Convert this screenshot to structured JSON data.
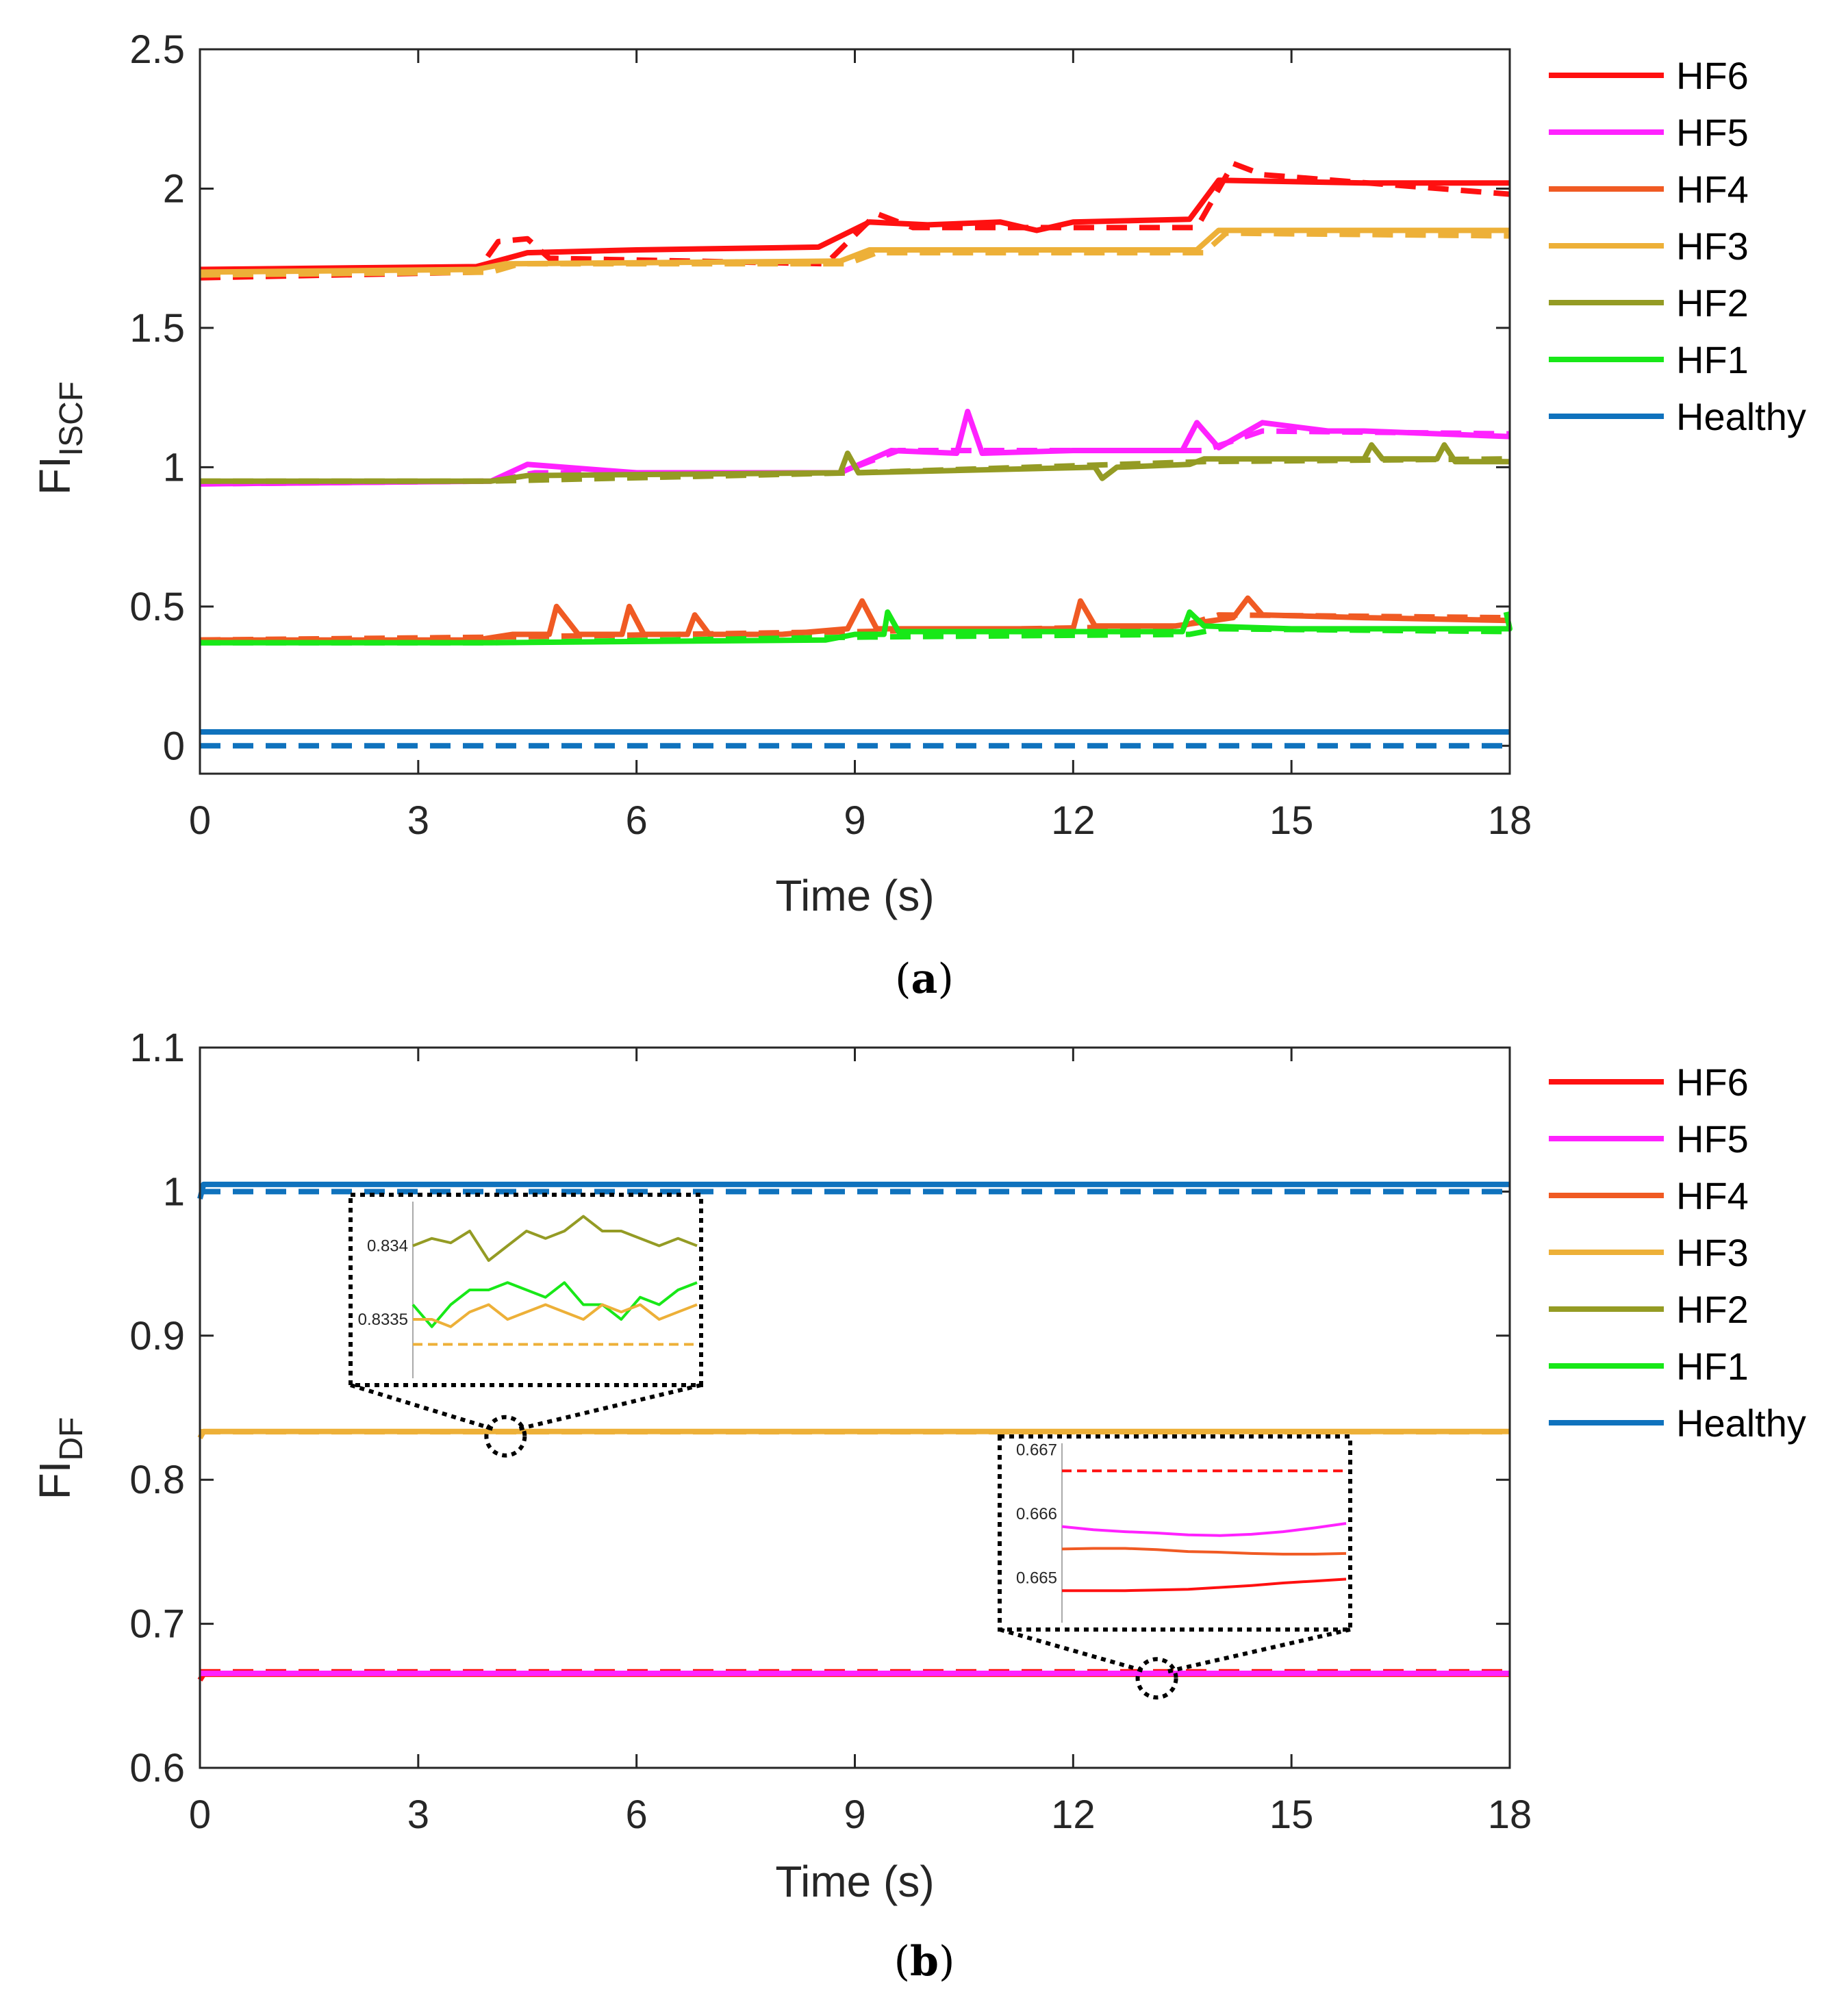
{
  "chart_data": [
    {
      "panel": "a",
      "caption_letter": "a",
      "type": "line",
      "ylabel_main": "FI",
      "ylabel_sub": "ISCF",
      "xlabel": "Time (s)",
      "xlim": [
        0,
        18
      ],
      "ylim": [
        -0.1,
        2.5
      ],
      "xticks": [
        0,
        3,
        6,
        9,
        12,
        15,
        18
      ],
      "yticks": [
        0,
        0.5,
        1,
        1.5,
        2,
        2.5
      ],
      "ytick_labels": [
        "0",
        "0.5",
        "1",
        "1.5",
        "2",
        "2.5"
      ],
      "legend": [
        "HF6",
        "HF5",
        "HF4",
        "HF3",
        "HF2",
        "HF1",
        "Healthy"
      ],
      "series": [
        {
          "name": "HF6",
          "color": "#ff1010",
          "style": "solid",
          "pts": [
            [
              0,
              1.71
            ],
            [
              3.8,
              1.72
            ],
            [
              4.5,
              1.77
            ],
            [
              6,
              1.78
            ],
            [
              8.5,
              1.79
            ],
            [
              9.2,
              1.88
            ],
            [
              10,
              1.87
            ],
            [
              11,
              1.88
            ],
            [
              11.5,
              1.85
            ],
            [
              12,
              1.88
            ],
            [
              13.6,
              1.89
            ],
            [
              14,
              2.03
            ],
            [
              16,
              2.02
            ],
            [
              18,
              2.02
            ]
          ]
        },
        {
          "name": "HF6",
          "color": "#ff1010",
          "style": "dashed",
          "pts": [
            [
              0,
              1.68
            ],
            [
              3.8,
              1.7
            ],
            [
              4.1,
              1.81
            ],
            [
              4.5,
              1.82
            ],
            [
              4.8,
              1.75
            ],
            [
              8.6,
              1.73
            ],
            [
              9.3,
              1.91
            ],
            [
              9.8,
              1.86
            ],
            [
              13.7,
              1.86
            ],
            [
              14.2,
              2.09
            ],
            [
              14.6,
              2.05
            ],
            [
              18,
              1.98
            ]
          ]
        },
        {
          "name": "HF5",
          "color": "#ff22ff",
          "style": "solid",
          "pts": [
            [
              0,
              0.94
            ],
            [
              4,
              0.95
            ],
            [
              4.5,
              1.01
            ],
            [
              6,
              0.98
            ],
            [
              8.8,
              0.98
            ],
            [
              9.5,
              1.06
            ],
            [
              10.4,
              1.05
            ],
            [
              10.55,
              1.2
            ],
            [
              10.75,
              1.05
            ],
            [
              12,
              1.06
            ],
            [
              13.5,
              1.06
            ],
            [
              13.7,
              1.16
            ],
            [
              14,
              1.07
            ],
            [
              14.6,
              1.16
            ],
            [
              15.5,
              1.13
            ],
            [
              16,
              1.13
            ],
            [
              18,
              1.11
            ]
          ]
        },
        {
          "name": "HF5",
          "color": "#ff22ff",
          "style": "dashed",
          "pts": [
            [
              0,
              0.94
            ],
            [
              4,
              0.95
            ],
            [
              4.6,
              0.98
            ],
            [
              8.8,
              0.98
            ],
            [
              9.6,
              1.06
            ],
            [
              13.8,
              1.06
            ],
            [
              14.6,
              1.13
            ],
            [
              18,
              1.12
            ]
          ]
        },
        {
          "name": "HF4",
          "color": "#f05a23",
          "style": "solid",
          "pts": [
            [
              0,
              0.38
            ],
            [
              3.8,
              0.38
            ],
            [
              4.3,
              0.4
            ],
            [
              4.8,
              0.4
            ],
            [
              4.9,
              0.5
            ],
            [
              5.2,
              0.4
            ],
            [
              5.8,
              0.4
            ],
            [
              5.9,
              0.5
            ],
            [
              6.1,
              0.4
            ],
            [
              6.7,
              0.4
            ],
            [
              6.8,
              0.47
            ],
            [
              7,
              0.4
            ],
            [
              8,
              0.4
            ],
            [
              8.9,
              0.42
            ],
            [
              9.1,
              0.52
            ],
            [
              9.3,
              0.42
            ],
            [
              12,
              0.42
            ],
            [
              12.1,
              0.52
            ],
            [
              12.3,
              0.43
            ],
            [
              13.4,
              0.43
            ],
            [
              14.2,
              0.46
            ],
            [
              14.4,
              0.53
            ],
            [
              14.6,
              0.47
            ],
            [
              16,
              0.46
            ],
            [
              18,
              0.45
            ]
          ]
        },
        {
          "name": "HF4",
          "color": "#f05a23",
          "style": "dashed",
          "pts": [
            [
              0,
              0.38
            ],
            [
              4,
              0.39
            ],
            [
              9,
              0.41
            ],
            [
              13.5,
              0.43
            ],
            [
              14,
              0.47
            ],
            [
              18,
              0.46
            ]
          ]
        },
        {
          "name": "HF3",
          "color": "#edb038",
          "style": "solid",
          "pts": [
            [
              0,
              1.7
            ],
            [
              3.8,
              1.71
            ],
            [
              4.2,
              1.73
            ],
            [
              8.8,
              1.74
            ],
            [
              9.2,
              1.78
            ],
            [
              13.7,
              1.78
            ],
            [
              14,
              1.85
            ],
            [
              18,
              1.85
            ]
          ]
        },
        {
          "name": "HF3",
          "color": "#edb038",
          "style": "dashed",
          "pts": [
            [
              0,
              1.69
            ],
            [
              4,
              1.7
            ],
            [
              4.4,
              1.73
            ],
            [
              8.9,
              1.73
            ],
            [
              9.3,
              1.77
            ],
            [
              13.8,
              1.77
            ],
            [
              14.1,
              1.84
            ],
            [
              18,
              1.83
            ]
          ]
        },
        {
          "name": "HF2",
          "color": "#949b24",
          "style": "solid",
          "pts": [
            [
              0,
              0.95
            ],
            [
              4,
              0.95
            ],
            [
              4.5,
              0.97
            ],
            [
              8.8,
              0.98
            ],
            [
              8.9,
              1.05
            ],
            [
              9.05,
              0.98
            ],
            [
              12.3,
              1.0
            ],
            [
              12.4,
              0.96
            ],
            [
              12.6,
              1.0
            ],
            [
              13.6,
              1.01
            ],
            [
              13.8,
              1.03
            ],
            [
              16,
              1.03
            ],
            [
              16.1,
              1.08
            ],
            [
              16.25,
              1.03
            ],
            [
              17,
              1.03
            ],
            [
              17.1,
              1.08
            ],
            [
              17.25,
              1.02
            ],
            [
              18,
              1.02
            ]
          ]
        },
        {
          "name": "HF2",
          "color": "#949b24",
          "style": "dashed",
          "pts": [
            [
              0,
              0.95
            ],
            [
              4,
              0.95
            ],
            [
              9,
              0.98
            ],
            [
              13.8,
              1.02
            ],
            [
              18,
              1.03
            ]
          ]
        },
        {
          "name": "HF1",
          "color": "#18e818",
          "style": "solid",
          "pts": [
            [
              0,
              0.37
            ],
            [
              4,
              0.37
            ],
            [
              8.6,
              0.38
            ],
            [
              9,
              0.4
            ],
            [
              9.4,
              0.4
            ],
            [
              9.45,
              0.48
            ],
            [
              9.6,
              0.41
            ],
            [
              13.5,
              0.41
            ],
            [
              13.6,
              0.48
            ],
            [
              13.8,
              0.43
            ],
            [
              15,
              0.42
            ],
            [
              16,
              0.42
            ],
            [
              18,
              0.42
            ],
            [
              17.95,
              0.48
            ]
          ]
        },
        {
          "name": "HF1",
          "color": "#18e818",
          "style": "dashed",
          "pts": [
            [
              0,
              0.37
            ],
            [
              4,
              0.37
            ],
            [
              9,
              0.39
            ],
            [
              13.6,
              0.4
            ],
            [
              14,
              0.42
            ],
            [
              18,
              0.41
            ]
          ]
        },
        {
          "name": "Healthy",
          "color": "#0f72bd",
          "style": "solid",
          "pts": [
            [
              0,
              0.05
            ],
            [
              18,
              0.05
            ]
          ]
        },
        {
          "name": "Healthy",
          "color": "#0f72bd",
          "style": "dashed",
          "pts": [
            [
              0,
              0
            ],
            [
              18,
              0
            ]
          ]
        }
      ]
    },
    {
      "panel": "b",
      "caption_letter": "b",
      "type": "line",
      "ylabel_main": "FI",
      "ylabel_sub": "DF",
      "xlabel": "Time (s)",
      "xlim": [
        0,
        18
      ],
      "ylim": [
        0.6,
        1.1
      ],
      "xticks": [
        0,
        3,
        6,
        9,
        12,
        15,
        18
      ],
      "yticks": [
        0.6,
        0.7,
        0.8,
        0.9,
        1,
        1.1
      ],
      "ytick_labels": [
        "0.6",
        "0.7",
        "0.8",
        "0.9",
        "1",
        "1.1"
      ],
      "legend": [
        "HF6",
        "HF5",
        "HF4",
        "HF3",
        "HF2",
        "HF1",
        "Healthy"
      ],
      "series": [
        {
          "name": "Healthy",
          "color": "#0f72bd",
          "style": "solid",
          "pts": [
            [
              0,
              0.995
            ],
            [
              0.05,
              1.005
            ],
            [
              18,
              1.005
            ]
          ]
        },
        {
          "name": "Healthy",
          "color": "#0f72bd",
          "style": "dashed",
          "pts": [
            [
              0,
              1.0
            ],
            [
              18,
              1.0
            ]
          ]
        },
        {
          "name": "HF3",
          "color": "#edb038",
          "style": "solid",
          "pts": [
            [
              0,
              0.829
            ],
            [
              0.05,
              0.8335
            ],
            [
              18,
              0.8335
            ]
          ]
        },
        {
          "name": "HF3",
          "color": "#edb038",
          "style": "dashed",
          "pts": [
            [
              0,
              0.8333
            ],
            [
              18,
              0.8333
            ]
          ]
        },
        {
          "name": "HF6",
          "color": "#ff1010",
          "style": "solid",
          "pts": [
            [
              0,
              0.661
            ],
            [
              0.05,
              0.665
            ],
            [
              18,
              0.665
            ]
          ]
        },
        {
          "name": "HF6",
          "color": "#ff1010",
          "style": "dashed",
          "pts": [
            [
              0,
              0.6667
            ],
            [
              18,
              0.6667
            ]
          ]
        },
        {
          "name": "HF5",
          "color": "#ff22ff",
          "style": "solid",
          "pts": [
            [
              0,
              0.6656
            ],
            [
              18,
              0.6656
            ]
          ]
        }
      ],
      "insets": [
        {
          "anchor": [
            4.2,
            0.833
          ],
          "yticks": [
            0.834,
            0.8335
          ],
          "ytick_labels": [
            "0.834",
            "0.8335"
          ],
          "ylim": [
            0.8331,
            0.8343
          ],
          "series": [
            {
              "name": "HF2",
              "color": "#949b24",
              "style": "solid",
              "ys": [
                0.834,
                0.83405,
                0.83402,
                0.8341,
                0.8339,
                0.834,
                0.8341,
                0.83405,
                0.8341,
                0.8342,
                0.8341,
                0.8341,
                0.83405,
                0.834,
                0.83405,
                0.834
              ]
            },
            {
              "name": "HF1",
              "color": "#18e818",
              "style": "solid",
              "ys": [
                0.8336,
                0.83345,
                0.8336,
                0.8337,
                0.8337,
                0.83375,
                0.8337,
                0.83365,
                0.83375,
                0.8336,
                0.8336,
                0.8335,
                0.83365,
                0.8336,
                0.8337,
                0.83375
              ]
            },
            {
              "name": "HF3",
              "color": "#edb038",
              "style": "solid",
              "ys": [
                0.8335,
                0.8335,
                0.83345,
                0.83355,
                0.8336,
                0.8335,
                0.83355,
                0.8336,
                0.83355,
                0.8335,
                0.8336,
                0.83355,
                0.8336,
                0.8335,
                0.83355,
                0.8336
              ]
            },
            {
              "name": "HF3",
              "color": "#edb038",
              "style": "dashed",
              "ys": [
                0.83333,
                0.83333
              ]
            }
          ]
        },
        {
          "anchor": [
            13.15,
            0.665
          ],
          "yticks": [
            0.667,
            0.666,
            0.665
          ],
          "ytick_labels": [
            "0.667",
            "0.666",
            "0.665"
          ],
          "ylim": [
            0.6643,
            0.6671
          ],
          "series": [
            {
              "name": "HF6",
              "color": "#ff1010",
              "style": "dashed",
              "ys": [
                0.66667,
                0.66667
              ]
            },
            {
              "name": "HF5",
              "color": "#ff22ff",
              "style": "solid",
              "ys": [
                0.6658,
                0.66575,
                0.66572,
                0.6657,
                0.66567,
                0.66566,
                0.66568,
                0.66572,
                0.66578,
                0.66585
              ]
            },
            {
              "name": "HF4",
              "color": "#f05a23",
              "style": "solid",
              "ys": [
                0.66545,
                0.66546,
                0.66546,
                0.66544,
                0.66541,
                0.6654,
                0.66538,
                0.66537,
                0.66537,
                0.66538
              ]
            },
            {
              "name": "HF6",
              "color": "#ff1010",
              "style": "solid",
              "ys": [
                0.6648,
                0.6648,
                0.6648,
                0.66481,
                0.66482,
                0.66485,
                0.66488,
                0.66492,
                0.66495,
                0.66498
              ]
            }
          ]
        }
      ]
    }
  ]
}
